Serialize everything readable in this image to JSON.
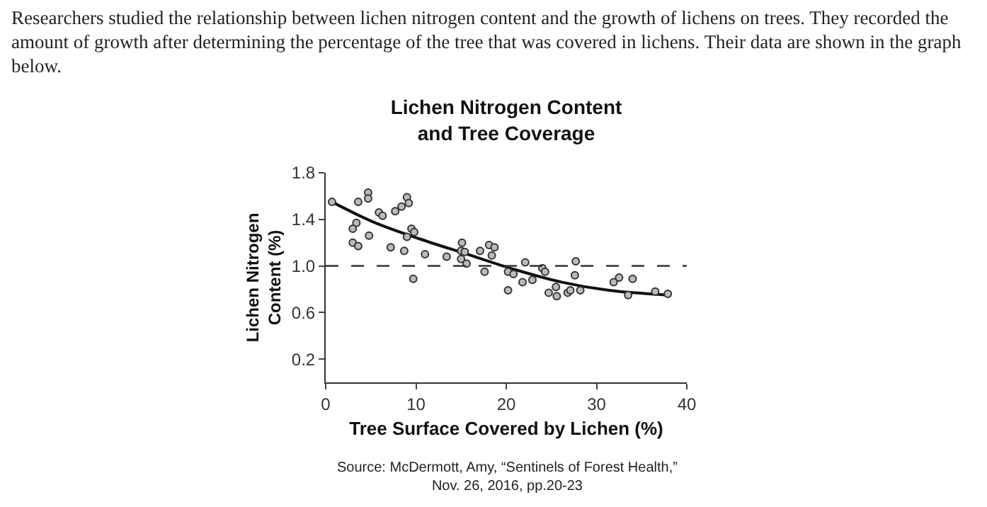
{
  "chart_data": {
    "type": "scatter",
    "title": "Lichen Nitrogen Content\nand Tree Coverage",
    "xlabel": "Tree Surface Covered by Lichen (%)",
    "ylabel": "Lichen Nitrogen\nContent (%)",
    "annotations": [
      "Researchers studied the relationship between lichen nitrogen content and the growth of lichens on trees. They recorded the amount of growth after determining the percentage of the tree that was covered in lichens. Their data are shown in the graph below.",
      "Source: McDermott, Amy, “Sentinels of Forest Health,”\nNov. 26, 2016, pp.20-23"
    ],
    "xlim": [
      0,
      40
    ],
    "xticks": [
      0,
      10,
      20,
      30,
      40
    ],
    "ylim": [
      0,
      1.8
    ],
    "yticks": [
      0.2,
      0.6,
      {
        "value": 1.0,
        "label": "1.0"
      },
      1.4,
      1.8
    ],
    "grid": false,
    "marker": "circle",
    "series": [
      {
        "color": "#bbbbbb",
        "x": [
          0.7,
          3.6,
          3.4,
          3.0,
          3.0,
          3.6,
          4.7,
          4.7,
          4.8,
          5.9,
          6.3,
          7.2,
          7.7,
          8.4,
          9.0,
          9.2,
          8.7,
          9.0,
          9.5,
          9.8,
          9.7,
          11.0,
          13.4,
          15.1,
          15.0,
          15.0,
          15.4,
          15.6,
          17.1,
          17.6,
          18.1,
          18.7,
          18.4,
          20.2,
          20.2,
          20.8,
          21.8,
          22.1,
          22.9,
          24.0,
          24.3,
          24.7,
          25.5,
          25.6,
          26.8,
          27.1,
          27.6,
          27.7,
          28.2,
          31.9,
          32.5,
          33.5,
          34.0,
          36.5,
          37.9
        ],
        "values": [
          1.55,
          1.55,
          1.37,
          1.32,
          1.2,
          1.17,
          1.63,
          1.58,
          1.26,
          1.46,
          1.43,
          1.16,
          1.47,
          1.51,
          1.59,
          1.54,
          1.13,
          1.25,
          1.32,
          1.29,
          0.89,
          1.1,
          1.08,
          1.2,
          1.13,
          1.06,
          1.12,
          1.02,
          1.13,
          0.95,
          1.18,
          1.16,
          1.09,
          0.95,
          0.79,
          0.93,
          0.86,
          1.03,
          0.88,
          0.98,
          0.95,
          0.77,
          0.82,
          0.74,
          0.77,
          0.79,
          0.92,
          1.04,
          0.79,
          0.86,
          0.9,
          0.75,
          0.89,
          0.78,
          0.76
        ]
      },
      {
        "type": "line",
        "color": "#111111",
        "marker": "none",
        "line_style": "solid",
        "x": [
          0.7,
          5.2,
          10.5,
          15.7,
          20.9,
          26.2,
          31.4,
          37.9
        ],
        "values": [
          1.55,
          1.38,
          1.23,
          1.1,
          0.97,
          0.86,
          0.79,
          0.75
        ]
      }
    ],
    "ref_lines": [
      {
        "axis": "y",
        "value": 1.0,
        "label": null,
        "color": "#333333",
        "line_style": "dashed"
      }
    ]
  }
}
